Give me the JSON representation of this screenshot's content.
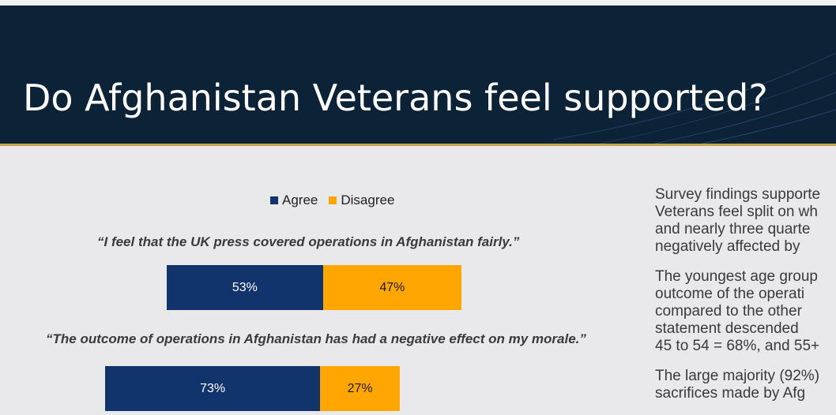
{
  "slide": {
    "title": "Do Afghanistan Veterans feel supported?"
  },
  "colors": {
    "header_bg": "#0c2236",
    "gold_rule": "#c7a54a",
    "agree": "#12346c",
    "disagree": "#ffa602"
  },
  "legend": [
    {
      "label": "Agree",
      "color": "#12346c"
    },
    {
      "label": "Disagree",
      "color": "#ffa602"
    }
  ],
  "chart_data": {
    "type": "bar",
    "orientation": "horizontal",
    "stacked": true,
    "categories": [
      "“I feel that the UK press covered operations in Afghanistan fairly.”",
      "“The outcome of operations in Afghanistan has had a negative effect on my morale.”"
    ],
    "series": [
      {
        "name": "Agree",
        "values": [
          53,
          73
        ],
        "labels": [
          "53%",
          "73%"
        ]
      },
      {
        "name": "Disagree",
        "values": [
          47,
          27
        ],
        "labels": [
          "47%",
          "27%"
        ]
      }
    ],
    "legend_position": "top",
    "grid": false
  },
  "side_text": [
    [
      "Survey findings supporte",
      "Veterans feel split on wh",
      "and nearly three quarte",
      "negatively affected by"
    ],
    [
      "The youngest age group",
      "outcome of the operati",
      "compared to the other",
      "statement descended",
      "45 to 54 = 68%, and 55+"
    ],
    [
      "The large majority (92%)",
      "sacrifices made by Afg"
    ]
  ]
}
